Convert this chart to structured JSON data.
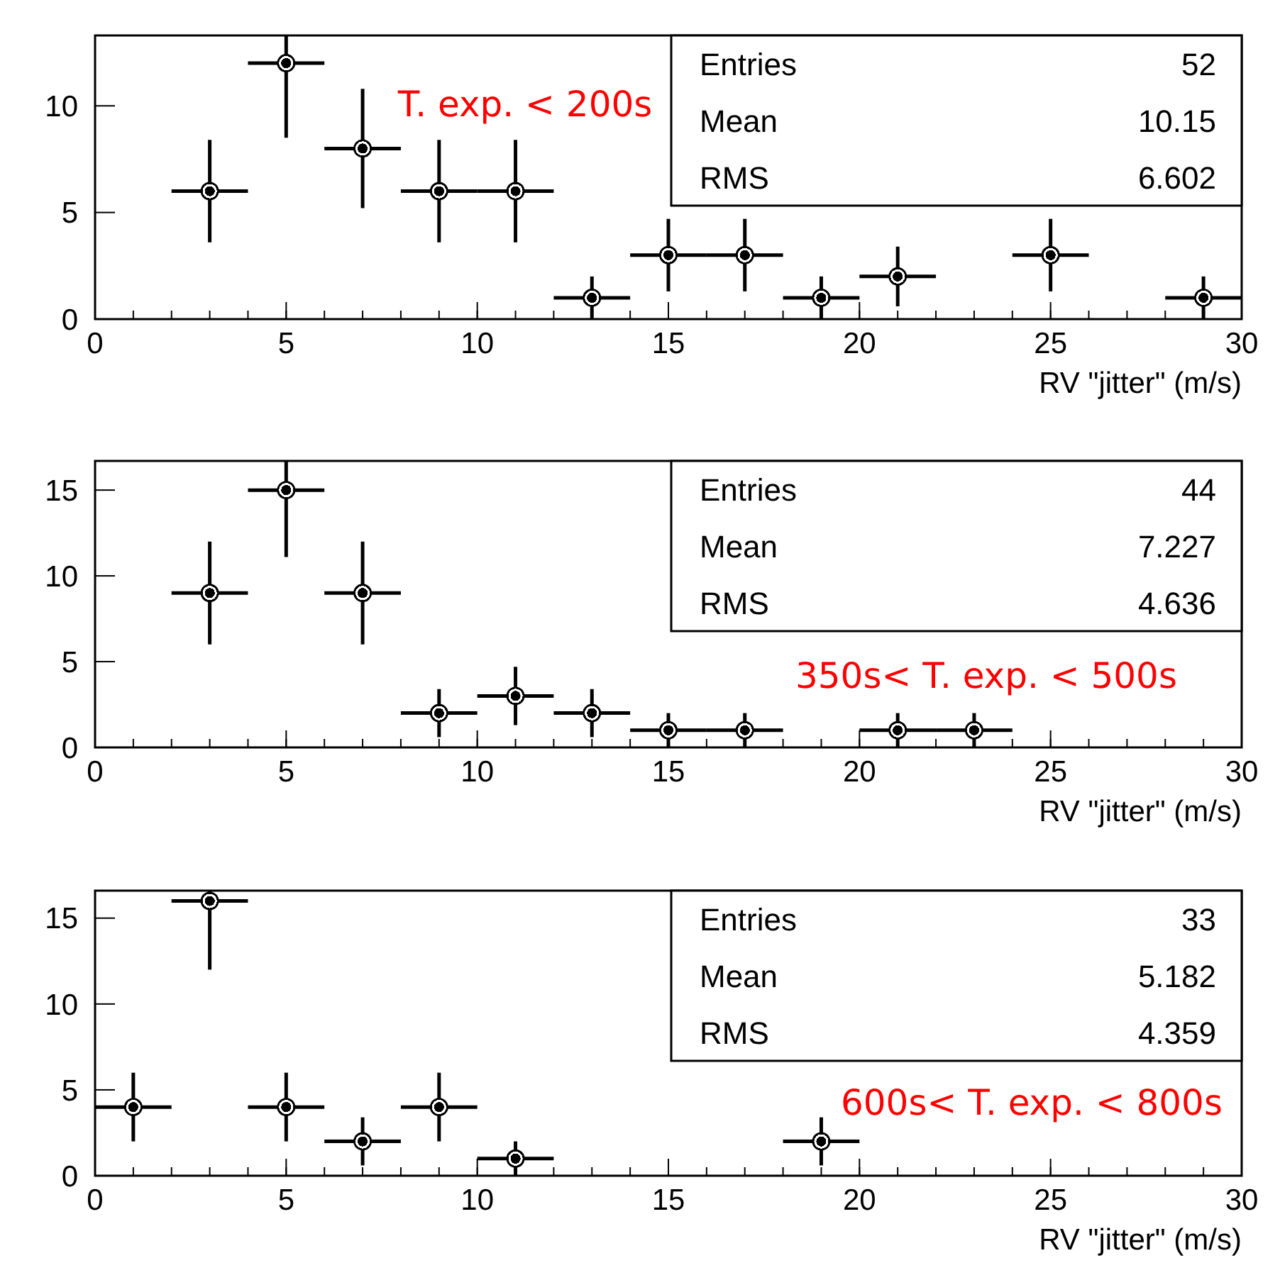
{
  "chart_data": [
    {
      "type": "scatter",
      "xlabel": "RV \"jitter\" (m/s)",
      "x": [
        3,
        5,
        7,
        9,
        11,
        13,
        15,
        17,
        19,
        21,
        25,
        29
      ],
      "values": [
        6,
        12,
        8,
        6,
        6,
        1,
        3,
        3,
        1,
        2,
        3,
        1
      ],
      "xerrors": [
        1,
        1,
        1,
        1,
        1,
        1,
        1,
        1,
        1,
        1,
        1,
        1
      ],
      "errors": [
        [
          3.6,
          8.4
        ],
        [
          8.5,
          13.3
        ],
        [
          5.2,
          10.8
        ],
        [
          3.6,
          8.4
        ],
        [
          3.6,
          8.4
        ],
        [
          0,
          2
        ],
        [
          1.3,
          4.7
        ],
        [
          1.3,
          4.7
        ],
        [
          0,
          2
        ],
        [
          0.6,
          3.4
        ],
        [
          1.3,
          4.7
        ],
        [
          0,
          2
        ]
      ],
      "xlim": [
        0,
        30
      ],
      "ylim": [
        0,
        13.3
      ],
      "xticks": [
        0,
        5,
        10,
        15,
        20,
        25,
        30
      ],
      "yticks": [
        0,
        5,
        10
      ],
      "marker": "circle",
      "annotations": [
        "Entries",
        "52",
        "Mean",
        "10.15",
        "RMS",
        "6.602",
        "T. exp. < 200s"
      ]
    },
    {
      "type": "scatter",
      "xlabel": "RV \"jitter\" (m/s)",
      "x": [
        3,
        5,
        7,
        9,
        11,
        13,
        15,
        17,
        21,
        23
      ],
      "values": [
        9,
        15,
        9,
        2,
        3,
        2,
        1,
        1,
        1,
        1
      ],
      "xerrors": [
        1,
        1,
        1,
        1,
        1,
        1,
        1,
        1,
        1,
        1
      ],
      "errors": [
        [
          6,
          12
        ],
        [
          11.1,
          16.7
        ],
        [
          6,
          12
        ],
        [
          0.6,
          3.4
        ],
        [
          1.3,
          4.7
        ],
        [
          0.6,
          3.4
        ],
        [
          0,
          2
        ],
        [
          0,
          2
        ],
        [
          0,
          2
        ],
        [
          0,
          2
        ]
      ],
      "xlim": [
        0,
        30
      ],
      "ylim": [
        0,
        16.7
      ],
      "xticks": [
        0,
        5,
        10,
        15,
        20,
        25,
        30
      ],
      "yticks": [
        0,
        5,
        10,
        15
      ],
      "marker": "circle",
      "annotations": [
        "Entries",
        "44",
        "Mean",
        "7.227",
        "RMS",
        "4.636",
        "350s< T. exp. < 500s"
      ]
    },
    {
      "type": "scatter",
      "xlabel": "RV \"jitter\" (m/s)",
      "x": [
        1,
        3,
        5,
        7,
        9,
        11,
        19
      ],
      "values": [
        4,
        16,
        4,
        2,
        4,
        1,
        2
      ],
      "xerrors": [
        1,
        1,
        1,
        1,
        1,
        1,
        1
      ],
      "errors": [
        [
          2,
          6
        ],
        [
          12,
          16.6
        ],
        [
          2,
          6
        ],
        [
          0.6,
          3.4
        ],
        [
          2,
          6
        ],
        [
          0,
          2
        ],
        [
          0.6,
          3.4
        ]
      ],
      "xlim": [
        0,
        30
      ],
      "ylim": [
        0,
        16.6
      ],
      "xticks": [
        0,
        5,
        10,
        15,
        20,
        25,
        30
      ],
      "yticks": [
        0,
        5,
        10,
        15
      ],
      "marker": "circle",
      "annotations": [
        "Entries",
        "33",
        "Mean",
        "5.182",
        "RMS",
        "4.359",
        "600s< T. exp. < 800s"
      ]
    }
  ]
}
